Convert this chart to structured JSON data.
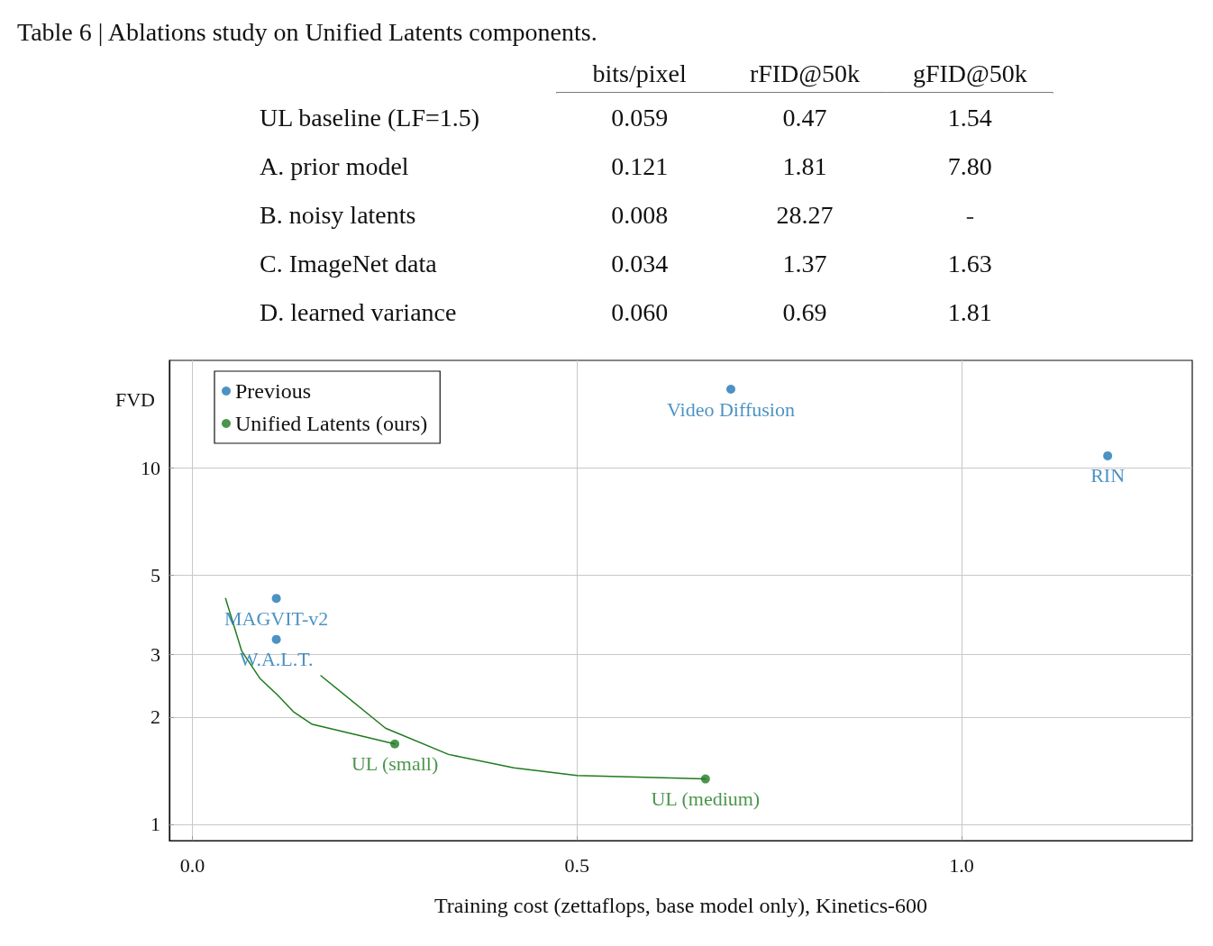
{
  "chart_data": [
    {
      "type": "heatmap",
      "title": "Table 6 | Ablations study on Unified Latents components.",
      "categories": [
        "bits/pixel",
        "rFID@50k",
        "gFID@50k"
      ],
      "y_categories": [
        "UL baseline (LF=1.5)",
        "A. prior model",
        "B. noisy latents",
        "C. ImageNet data",
        "D. learned variance"
      ],
      "cells": [
        [
          0.059,
          0.47,
          1.54
        ],
        [
          0.121,
          1.81,
          7.8
        ],
        [
          0.008,
          28.27,
          null
        ],
        [
          0.034,
          1.37,
          1.63
        ],
        [
          0.06,
          0.69,
          1.81
        ]
      ],
      "cell_labels": [
        [
          "0.059",
          "0.47",
          "1.54"
        ],
        [
          "0.121",
          "1.81",
          "7.80"
        ],
        [
          "0.008",
          "28.27",
          "-"
        ],
        [
          "0.034",
          "1.37",
          "1.63"
        ],
        [
          "0.060",
          "0.69",
          "1.81"
        ]
      ]
    },
    {
      "type": "scatter",
      "xlabel": "Training cost (zettaflops, base model only), Kinetics-600",
      "ylabel": "FVD",
      "log": "y",
      "grid": true,
      "legend": "top left",
      "marker": "circle",
      "xlim": [
        -0.03,
        1.3
      ],
      "xticks": [
        {
          "value": 0,
          "label": "0.0"
        },
        {
          "value": 0.5,
          "label": "0.5"
        },
        {
          "value": 1,
          "label": "1.0"
        }
      ],
      "ylim": [
        0.9,
        20
      ],
      "yticks": [
        1,
        2,
        3,
        5,
        10
      ],
      "series": [
        {
          "name": "Previous",
          "color": "#1f77b4",
          "x": [
            0.109,
            0.109,
            0.7,
            1.19
          ],
          "values": [
            4.3,
            3.3,
            16.6,
            10.8
          ]
        },
        {
          "name": "Unified Latents (ours)",
          "color": "#1f7a1f",
          "x": [
            0.263,
            0.667
          ],
          "values": [
            1.68,
            1.34
          ]
        },
        {
          "type": "line",
          "color": "#1f7a1f",
          "marker": "none",
          "line_style": "solid",
          "x": [
            0.043,
            0.064,
            0.088,
            0.111,
            0.131,
            0.155,
            0.219,
            0.263
          ],
          "values": [
            4.3,
            3.06,
            2.56,
            2.3,
            2.07,
            1.91,
            1.77,
            1.68
          ]
        },
        {
          "type": "line",
          "color": "#1f7a1f",
          "marker": "none",
          "line_style": "solid",
          "x": [
            0.167,
            0.251,
            0.333,
            0.418,
            0.5,
            0.667
          ],
          "values": [
            2.61,
            1.86,
            1.57,
            1.44,
            1.37,
            1.34
          ]
        }
      ],
      "annotations": [
        {
          "text": "MAGVIT-v2",
          "x": 0.109,
          "y": 4.3
        },
        {
          "text": "W.A.L.T.",
          "x": 0.109,
          "y": 3.3
        },
        {
          "text": "Video Diffusion",
          "x": 0.7,
          "y": 16.6
        },
        {
          "text": "RIN",
          "x": 1.19,
          "y": 10.8
        },
        {
          "text": "UL (small)",
          "x": 0.263,
          "y": 1.68
        },
        {
          "text": "UL (medium)",
          "x": 0.667,
          "y": 1.34
        }
      ]
    }
  ]
}
